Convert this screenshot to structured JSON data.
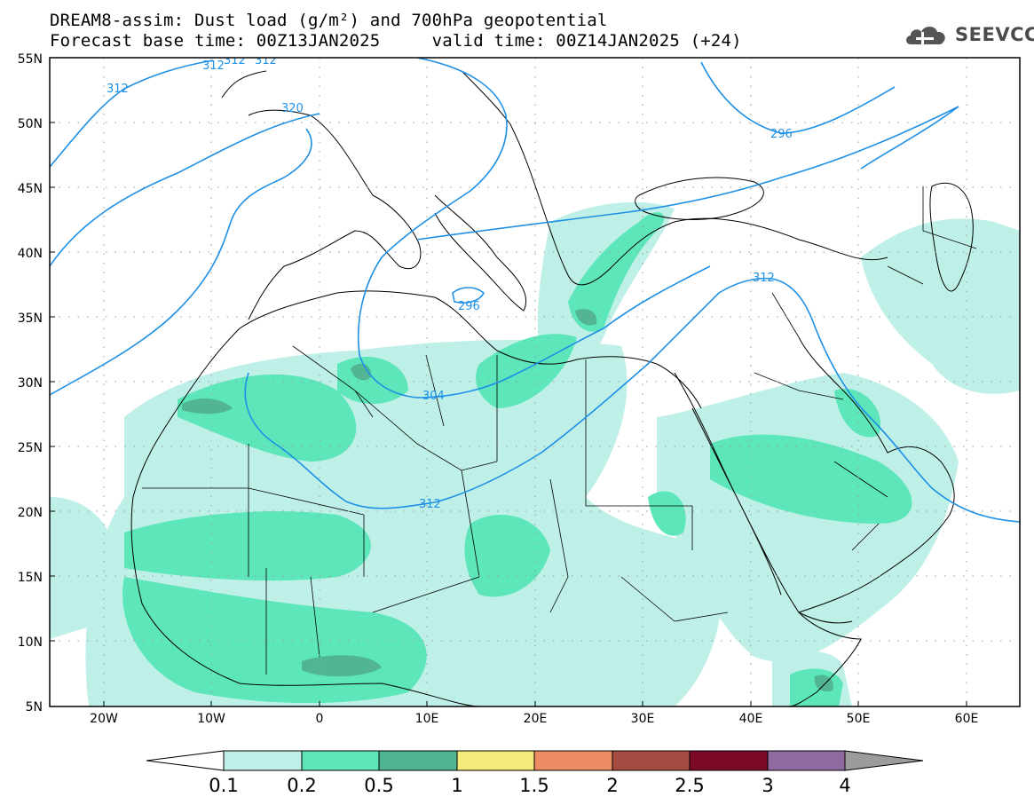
{
  "header": {
    "title_line1": "DREAM8-assim: Dust load (g/m²) and 700hPa geopotential",
    "title_line2": "Forecast base time: 00Z13JAN2025     valid time: 00Z14JAN2025 (+24)"
  },
  "logo": {
    "text": "SEEVCCC",
    "icon": "cloud-icon"
  },
  "map": {
    "lat_labels": [
      "55N",
      "50N",
      "45N",
      "40N",
      "35N",
      "30N",
      "25N",
      "20N",
      "15N",
      "10N",
      "5N"
    ],
    "lat_values": [
      55,
      50,
      45,
      40,
      35,
      30,
      25,
      20,
      15,
      10,
      5
    ],
    "lon_labels": [
      "20W",
      "10W",
      "0",
      "10E",
      "20E",
      "30E",
      "40E",
      "50E",
      "60E"
    ],
    "lon_values": [
      -20,
      -10,
      0,
      10,
      20,
      30,
      40,
      50,
      60
    ],
    "extent": {
      "lon_min": -25,
      "lon_max": 65,
      "lat_min": 5,
      "lat_max": 55
    },
    "gridlines": true,
    "contour_labels": [
      "312",
      "312",
      "312",
      "320",
      "312",
      "296",
      "296",
      "304",
      "312",
      "312"
    ]
  },
  "colorbar": {
    "labels": [
      "0.1",
      "0.2",
      "0.5",
      "1",
      "1.5",
      "2",
      "2.5",
      "3",
      "4"
    ],
    "colors": [
      "#ffffff",
      "#bff0e8",
      "#5ce6b9",
      "#52b591",
      "#f4ea7a",
      "#eb8c65",
      "#a64b41",
      "#7a0a28",
      "#8f6aa0",
      "#9c9c9c"
    ]
  },
  "colors": {
    "contour": "#1e90e6",
    "dust_low": "#bff0e8",
    "dust_mid": "#5ce6b9",
    "dust_high": "#52b591"
  }
}
